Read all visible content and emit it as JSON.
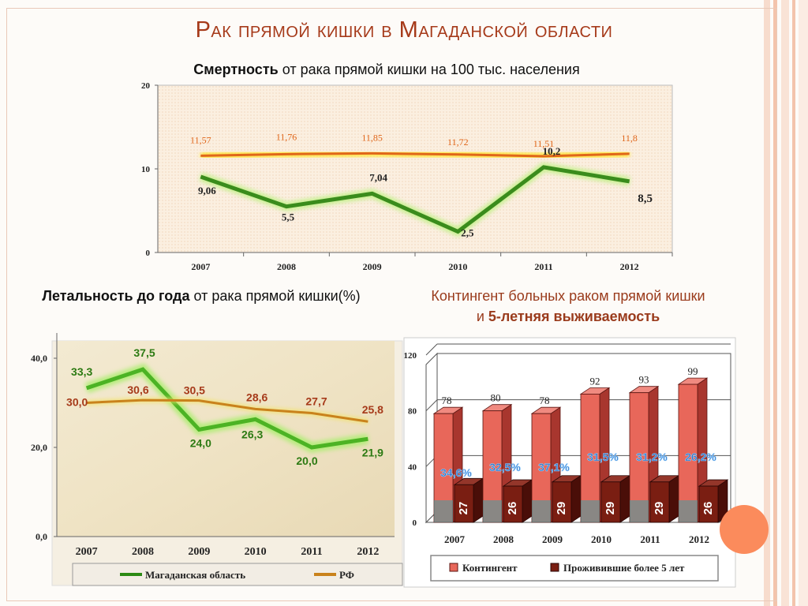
{
  "slide": {
    "title": "Рак прямой кишки в Магаданской области",
    "mortality_title_bold": "Смертность",
    "mortality_title_rest": " от рака прямой кишки на 100 тыс. населения",
    "lethality_title_bold": "Летальность до года",
    "lethality_title_rest": " от рака прямой кишки(%)",
    "contingent_title_line1": "Контингент больных раком прямой кишки",
    "contingent_title_and": "и ",
    "contingent_title_bold": "5-летняя выживаемость"
  },
  "colors": {
    "green_line": "#3a8c1c",
    "orange_line": "#e0661a",
    "bar_contingent": "#e8675a",
    "bar_survived": "#7a1e12",
    "percent_label": "#2e74c8",
    "title": "#a63a1a"
  },
  "chart_data": [
    {
      "type": "line",
      "name": "mortality",
      "categories": [
        "2007",
        "2008",
        "2009",
        "2010",
        "2011",
        "2012"
      ],
      "ylim": [
        0,
        20
      ],
      "yticks": [
        "0",
        "10",
        "20"
      ],
      "series": [
        {
          "values": [
            9.06,
            5.5,
            7.04,
            2.5,
            10.2,
            8.5
          ],
          "labels": [
            "9,06",
            "5,5",
            "7,04",
            "2,5",
            "10,2",
            "8,5"
          ]
        },
        {
          "values": [
            11.57,
            11.76,
            11.85,
            11.72,
            11.51,
            11.8
          ],
          "labels": [
            "11,57",
            "11,76",
            "11,85",
            "11,72",
            "11,51",
            "11,8"
          ]
        }
      ]
    },
    {
      "type": "line",
      "name": "lethality",
      "categories": [
        "2007",
        "2008",
        "2009",
        "2010",
        "2011",
        "2012"
      ],
      "ylim": [
        0,
        40
      ],
      "yticks": [
        "0,0",
        "20,0",
        "40,0"
      ],
      "series": [
        {
          "name": "Магаданская область",
          "values": [
            33.3,
            37.5,
            24.0,
            26.3,
            20.0,
            21.9
          ],
          "labels": [
            "33,3",
            "37,5",
            "24,0",
            "26,3",
            "20,0",
            "21,9"
          ]
        },
        {
          "name": "РФ",
          "values": [
            30.0,
            30.6,
            30.5,
            28.6,
            27.7,
            25.8
          ],
          "labels": [
            "30,0",
            "30,6",
            "30,5",
            "28,6",
            "27,7",
            "25,8"
          ]
        }
      ],
      "legend": "bottom"
    },
    {
      "type": "bar",
      "name": "contingent",
      "categories": [
        "2007",
        "2008",
        "2009",
        "2010",
        "2011",
        "2012"
      ],
      "ylim": [
        0,
        120
      ],
      "yticks": [
        "0",
        "40",
        "80",
        "120"
      ],
      "series": [
        {
          "name": "Контингент",
          "values": [
            78,
            80,
            78,
            92,
            93,
            99
          ]
        },
        {
          "name": "Проживившие более 5 лет",
          "values": [
            27,
            26,
            29,
            29,
            29,
            26
          ]
        }
      ],
      "percent_labels": [
        "34,6%",
        "32,5%",
        "37,1%",
        "31,5%",
        "31,2%",
        "26,2%"
      ],
      "legend": "bottom"
    }
  ]
}
